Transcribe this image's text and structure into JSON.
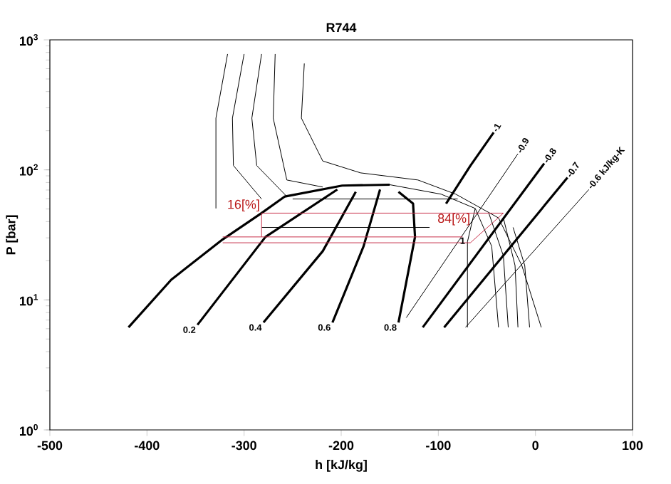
{
  "chart_data": {
    "type": "line",
    "title": "R744",
    "xlabel": "h [kJ/kg]",
    "ylabel": "P [bar]",
    "log": "y",
    "grid": false,
    "marker": "none",
    "line_style": "solid",
    "xlim": [
      -500,
      100
    ],
    "xticks": [
      -500,
      -400,
      -300,
      -200,
      -100,
      0,
      100
    ],
    "ylim": [
      1,
      1000
    ],
    "yticks": [
      {
        "value": 1,
        "label": "10$^{0}$"
      },
      {
        "value": 10,
        "label": "10$^{1}$"
      },
      {
        "value": 100,
        "label": "10$^{2}$"
      },
      {
        "value": 1000,
        "label": "10$^{3}$"
      }
    ],
    "series": [
      {
        "color": "#000000",
        "x": [
          -419,
          -375,
          -322,
          -282,
          -258,
          -199,
          -150
        ],
        "values": [
          6.15,
          14.3,
          29.2,
          46.5,
          62.4,
          75.7,
          76.9
        ]
      },
      {
        "color": "#000000",
        "x": [
          -150,
          -97,
          -62,
          -70,
          -70
        ],
        "values": [
          76.9,
          65.0,
          50.5,
          28.0,
          6.15
        ]
      },
      {
        "color": "#000000",
        "x": [
          -348,
          -278,
          -204
        ],
        "values": [
          6.43,
          30.5,
          70.6
        ]
      },
      {
        "color": "#000000",
        "x": [
          -280,
          -219,
          -185
        ],
        "values": [
          6.7,
          23.7,
          67.8
        ]
      },
      {
        "color": "#000000",
        "x": [
          -209,
          -177,
          -160
        ],
        "values": [
          6.7,
          25.8,
          70.6
        ]
      },
      {
        "color": "#000000",
        "x": [
          -141,
          -124,
          -126,
          -141
        ],
        "values": [
          6.7,
          30.5,
          55.0,
          67.8
        ]
      },
      {
        "color": "#000000",
        "x": [
          -317,
          -329,
          -329
        ],
        "values": [
          778,
          250,
          50.5
        ]
      },
      {
        "color": "#000000",
        "x": [
          -300,
          -312,
          -311,
          -282
        ],
        "values": [
          778,
          250,
          108,
          59.7
        ]
      },
      {
        "color": "#000000",
        "x": [
          -282,
          -292,
          -287,
          -256
        ],
        "values": [
          778,
          250,
          108,
          62.4
        ]
      },
      {
        "color": "#000000",
        "x": [
          -268,
          -270,
          -256,
          -219
        ],
        "values": [
          778,
          250,
          83.6,
          73.8
        ]
      },
      {
        "color": "#000000",
        "x": [
          -238,
          -241,
          -219,
          -180,
          -121,
          -82,
          -38,
          -14,
          6
        ],
        "values": [
          658,
          250,
          117,
          94.8,
          83.6,
          65.0,
          42.7,
          18.4,
          6.15
        ]
      },
      {
        "color": "#000000",
        "x": [
          -62,
          -45,
          -38
        ],
        "values": [
          50.5,
          25.8,
          6.15
        ]
      },
      {
        "color": "#000000",
        "x": [
          -48,
          -33,
          -28
        ],
        "values": [
          46.5,
          21.8,
          6.15
        ]
      },
      {
        "color": "#000000",
        "x": [
          -33,
          -21,
          -18
        ],
        "values": [
          42.7,
          18.4,
          6.15
        ]
      },
      {
        "color": "#000000",
        "x": [
          -23,
          -11,
          -6
        ],
        "values": [
          36.1,
          18.4,
          6.15
        ]
      },
      {
        "color": "#000000",
        "x": [
          -92,
          -67,
          -43
        ],
        "values": [
          55.0,
          107.6,
          194
        ]
      },
      {
        "color": "#000000",
        "x": [
          -133,
          -18
        ],
        "values": [
          7.3,
          133
        ]
      },
      {
        "color": "#000000",
        "x": [
          -116,
          9
        ],
        "values": [
          6.15,
          112
        ]
      },
      {
        "color": "#000000",
        "x": [
          -94,
          33
        ],
        "values": [
          6.15,
          87.3
        ]
      },
      {
        "color": "#000000",
        "x": [
          -72,
          55
        ],
        "values": [
          6.15,
          70.6
        ]
      },
      {
        "color": "#000000",
        "x": [
          -250,
          -80
        ],
        "values": [
          59.7,
          59.7
        ]
      },
      {
        "color": "#000000",
        "x": [
          -282,
          -109
        ],
        "values": [
          36.1,
          36.1
        ]
      },
      {
        "color": "#c8304a",
        "x": [
          -282,
          -33
        ],
        "values": [
          46.5,
          46.5
        ]
      },
      {
        "color": "#c8304a",
        "x": [
          -322,
          -75
        ],
        "values": [
          30.5,
          30.5
        ]
      },
      {
        "color": "#c8304a",
        "x": [
          -322,
          -67
        ],
        "values": [
          27.5,
          27.5
        ]
      },
      {
        "color": "#c8304a",
        "x": [
          -282,
          -282
        ],
        "values": [
          46.5,
          30.5
        ]
      },
      {
        "color": "#c8304a",
        "x": [
          -67,
          -33
        ],
        "values": [
          27.5,
          46.5
        ]
      }
    ],
    "annotations": [
      {
        "text": "16[%]",
        "x": -282,
        "y": 46.5
      },
      {
        "text": "84[%]",
        "x": -84,
        "y": 41.6
      },
      {
        "text": "0.2",
        "x": -348,
        "y": 6.43
      },
      {
        "text": "0.4",
        "x": -280,
        "y": 6.7
      },
      {
        "text": "0.6",
        "x": -209,
        "y": 6.7
      },
      {
        "text": "0.8",
        "x": -141,
        "y": 6.7
      },
      {
        "text": "1",
        "x": -75,
        "y": 28.5
      },
      {
        "text": "-1",
        "x": -43,
        "y": 194
      },
      {
        "text": "-0.9",
        "x": -18,
        "y": 133
      },
      {
        "text": "-0.8",
        "x": 9,
        "y": 112
      },
      {
        "text": "-0.7",
        "x": 33,
        "y": 87.3
      },
      {
        "text": "-0.6 kJ/kg-K",
        "x": 55,
        "y": 70.6
      }
    ]
  }
}
